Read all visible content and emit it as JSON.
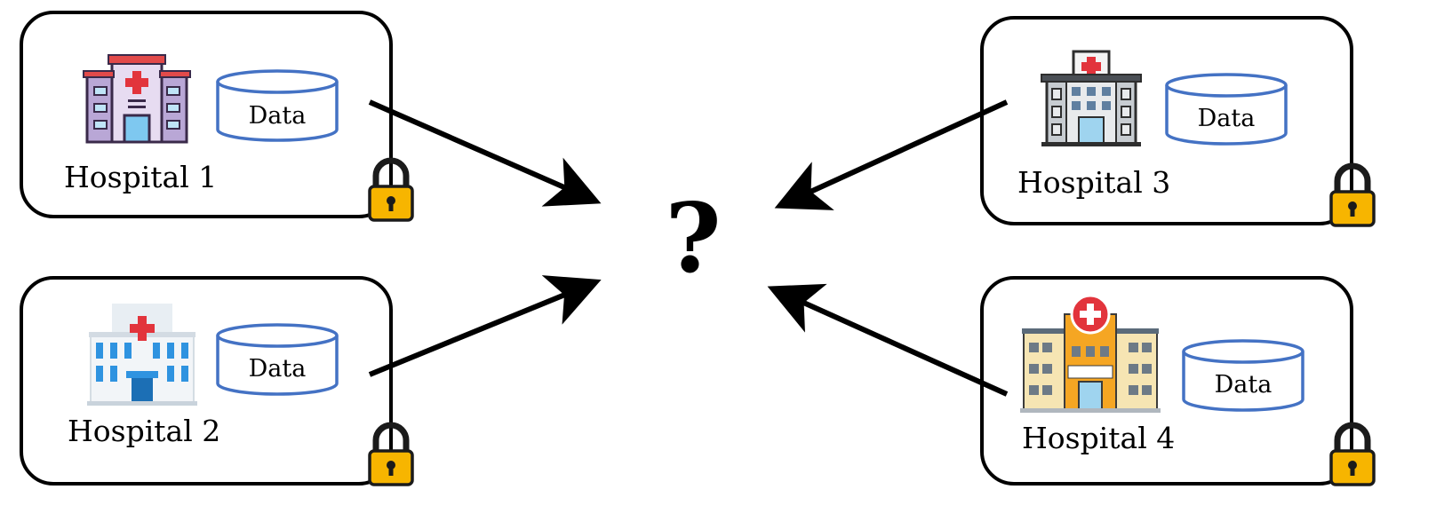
{
  "central_symbol": "?",
  "hospitals": [
    {
      "name": "Hospital 1",
      "data_label": "Data"
    },
    {
      "name": "Hospital 2",
      "data_label": "Data"
    },
    {
      "name": "Hospital 3",
      "data_label": "Data"
    },
    {
      "name": "Hospital 4",
      "data_label": "Data"
    }
  ],
  "colors": {
    "cylinder_stroke": "#4472c4",
    "lock_body": "#f7b500",
    "box_stroke": "#000000",
    "arrow": "#000000"
  }
}
